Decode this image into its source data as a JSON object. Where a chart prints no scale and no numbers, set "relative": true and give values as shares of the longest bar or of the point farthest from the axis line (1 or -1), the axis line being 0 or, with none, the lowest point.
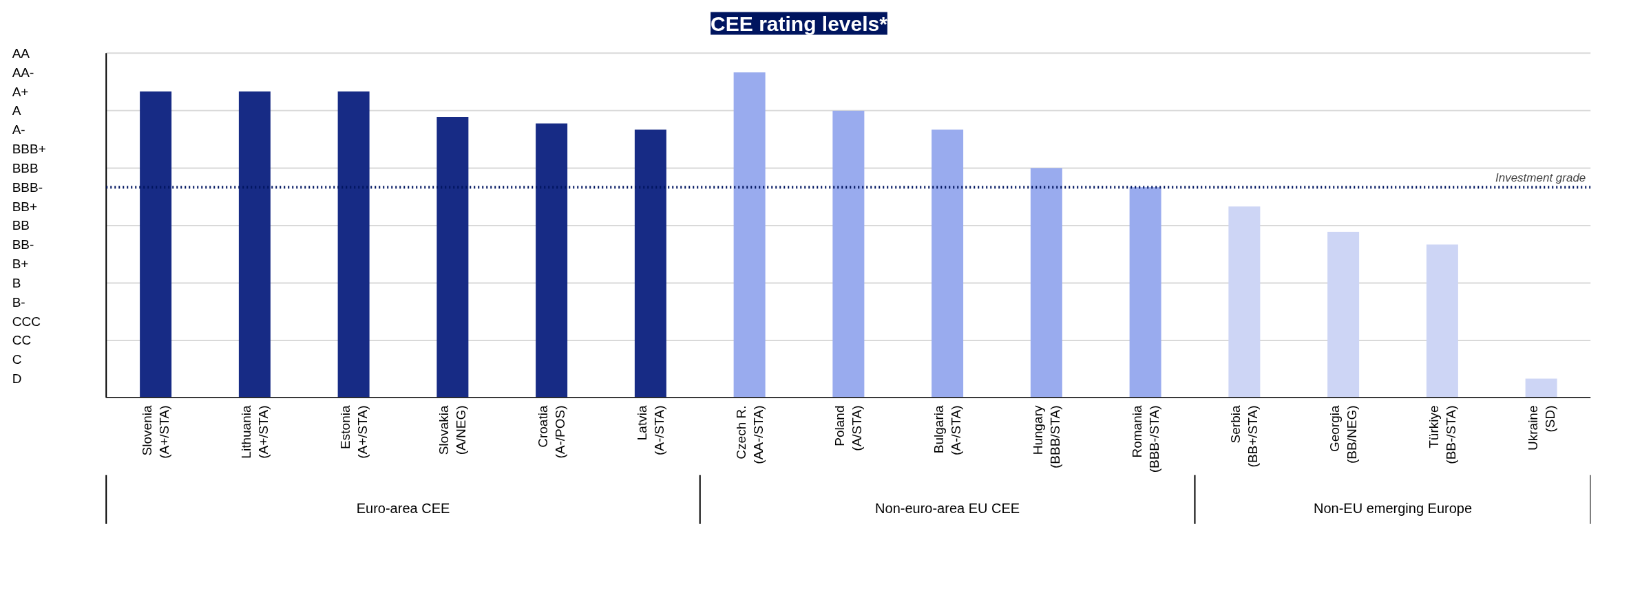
{
  "chart_data": {
    "type": "bar",
    "title": "CEE rating levels*",
    "relative": true,
    "categories": [
      "Slovenia\n(A+/STA)",
      "Lithuania\n(A+/STA)",
      "Estonia\n(A+/STA)",
      "Slovakia\n(A/NEG)",
      "Croatia\n(A-/POS)",
      "Latvia\n(A-/STA)",
      "Czech R.\n(AA-/STA)",
      "Poland\n(A/STA)",
      "Bulgaria\n(A-/STA)",
      "Hungary\n(BBB/STA)",
      "Romania\n(BBB-/STA)",
      "Serbia\n(BB+/STA)",
      "Georgia\n(BB/NEG)",
      "Türkiye\n(BB-/STA)",
      "Ukraine\n(SD)"
    ],
    "values": [
      0.941,
      0.941,
      0.941,
      0.863,
      0.843,
      0.824,
      1,
      0.882,
      0.824,
      0.706,
      0.647,
      0.588,
      0.51,
      0.471,
      0.059
    ],
    "colors": [
      "#172b85",
      "#172b85",
      "#172b85",
      "#172b85",
      "#172b85",
      "#172b85",
      "#99abee",
      "#99abee",
      "#99abee",
      "#99abee",
      "#99abee",
      "#cdd5f5",
      "#cdd5f5",
      "#cdd5f5",
      "#cdd5f5"
    ],
    "grid": "y",
    "ref_lines": [
      {
        "axis": "y",
        "value": 0.647,
        "label": "Investment grade",
        "color": "#00155f",
        "line_style": "dotted"
      }
    ],
    "annotations": [
      "Euro-area CEE",
      "Non-euro-area EU CEE",
      "Non-EU emerging Europe",
      "AA",
      "AA-",
      "A+",
      "A",
      "A-",
      "BBB+",
      "BBB",
      "BBB-",
      "BB+",
      "BB",
      "BB-",
      "B+",
      "B",
      "B-",
      "CCC",
      "CC",
      "C",
      "D"
    ]
  }
}
